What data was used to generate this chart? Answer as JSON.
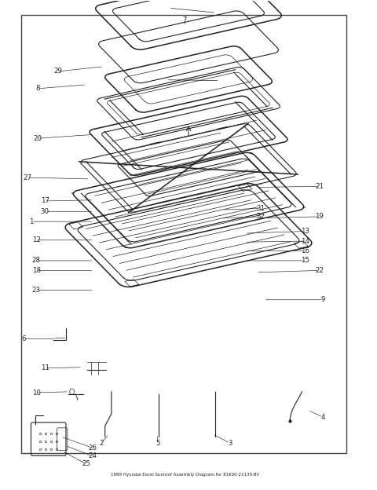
{
  "title": "1989 Hyundai Excel Sunroof Assembly Diagram for 81600-21130-BV",
  "bg_color": "#ffffff",
  "line_color": "#222222",
  "border_color": "#444444",
  "fig_width": 4.8,
  "fig_height": 6.24,
  "dpi": 100,
  "iso": {
    "ox": 0.5,
    "oy": 0.52,
    "sx": 0.3,
    "sy": 0.13,
    "dz": 0.055
  }
}
